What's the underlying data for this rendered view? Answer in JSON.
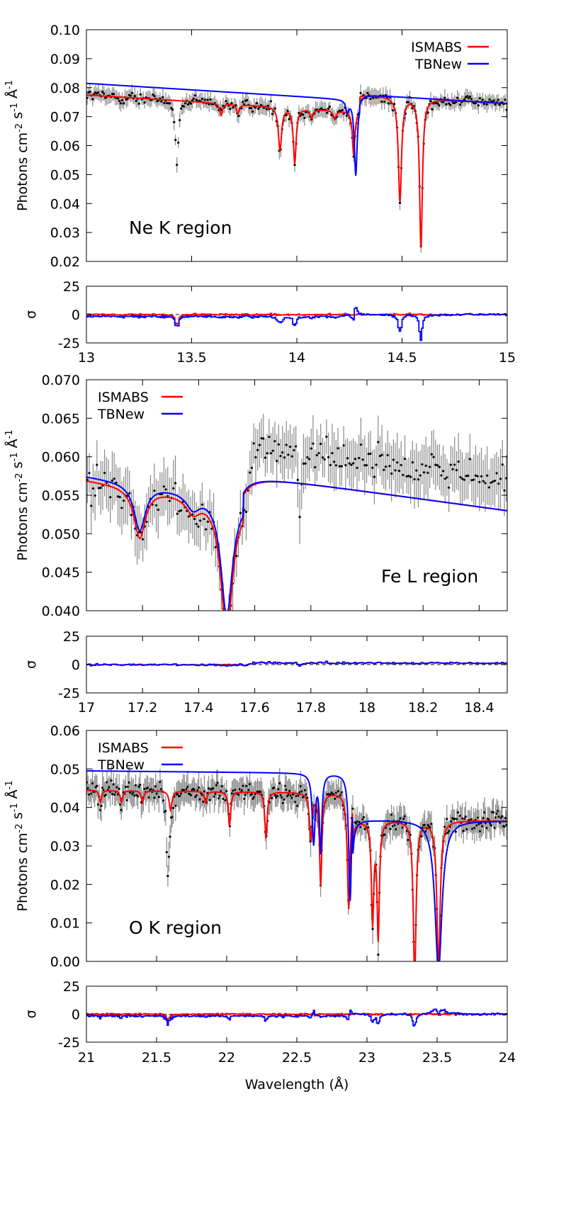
{
  "figure": {
    "ylabel_main": "Photons cm",
    "ylabel_sup1": "-2",
    "ylabel_mid": " s",
    "ylabel_sup2": "-1",
    "ylabel_unit": " Å",
    "ylabel_sup3": "-1",
    "resid_ylabel": "σ",
    "xlabel": "Wavelength (Å)"
  },
  "chart_data": [
    {
      "type": "line",
      "panel": "Ne K region",
      "annotation": "Ne K region",
      "xlim": [
        13,
        15
      ],
      "ylim": [
        0.02,
        0.1
      ],
      "xticks": [
        "13",
        "13.5",
        "14",
        "14.5",
        "15"
      ],
      "yticks": [
        "0.02",
        "0.03",
        "0.04",
        "0.05",
        "0.06",
        "0.07",
        "0.08",
        "0.09",
        "0.10"
      ],
      "legend_position": "top-right",
      "continuum": {
        "x": [
          13.0,
          15.0
        ],
        "y": [
          0.0835,
          0.0745
        ]
      },
      "data_scatter": 0.0022,
      "series": [
        {
          "name": "ISMABS",
          "color": "#ff0000",
          "lines": [
            {
              "x": 13.64,
              "d": 0.004,
              "w": 0.008
            },
            {
              "x": 13.72,
              "d": 0.003,
              "w": 0.008
            },
            {
              "x": 13.92,
              "d": 0.015,
              "w": 0.009
            },
            {
              "x": 13.99,
              "d": 0.019,
              "w": 0.008
            },
            {
              "x": 14.07,
              "d": 0.003,
              "w": 0.008
            },
            {
              "x": 14.18,
              "d": 0.003,
              "w": 0.008
            },
            {
              "x": 14.27,
              "d": 0.015,
              "w": 0.007
            },
            {
              "x": 14.49,
              "d": 0.036,
              "w": 0.009
            },
            {
              "x": 14.59,
              "d": 0.052,
              "w": 0.008
            }
          ],
          "edge": {
            "x": 14.3,
            "pre": 0.006
          }
        },
        {
          "name": "TBNew",
          "color": "#0000ff",
          "lines": [
            {
              "x": 14.28,
              "d": 0.026,
              "w": 0.008
            },
            {
              "x": 14.24,
              "d": 0.004,
              "w": 0.008
            }
          ],
          "edge": {
            "x": 14.3,
            "pre": 0.002
          }
        }
      ],
      "extra_data_dips": [
        {
          "x": 13.43,
          "d": 0.024,
          "w": 0.008
        }
      ],
      "residual": {
        "ylim": [
          -25,
          25
        ],
        "yticks": [
          "25",
          "0",
          "-25"
        ]
      }
    },
    {
      "type": "line",
      "panel": "Fe L region",
      "annotation": "Fe L region",
      "xlim": [
        17,
        18.5
      ],
      "ylim": [
        0.04,
        0.07
      ],
      "xticks": [
        "17",
        "17.2",
        "17.4",
        "17.6",
        "17.8",
        "18",
        "18.2",
        "18.4"
      ],
      "yticks": [
        "0.040",
        "0.045",
        "0.050",
        "0.055",
        "0.060",
        "0.065",
        "0.070"
      ],
      "legend_position": "top-left",
      "continuum": {
        "x": [
          17.0,
          18.5
        ],
        "y": [
          0.0605,
          0.053
        ]
      },
      "data_scatter": 0.0028,
      "series": [
        {
          "name": "ISMABS",
          "color": "#ff0000",
          "lines": [
            {
              "x": 17.19,
              "d": 0.0065,
              "w": 0.025
            },
            {
              "x": 17.5,
              "d": 0.0175,
              "w": 0.025
            },
            {
              "x": 17.38,
              "d": 0.002,
              "w": 0.03
            }
          ],
          "edge": {
            "x": 17.56,
            "pre": 0.0035
          }
        },
        {
          "name": "TBNew",
          "color": "#0000ff",
          "lines": [
            {
              "x": 17.19,
              "d": 0.006,
              "w": 0.025
            },
            {
              "x": 17.5,
              "d": 0.0155,
              "w": 0.025
            },
            {
              "x": 17.38,
              "d": 0.002,
              "w": 0.03
            }
          ],
          "edge": {
            "x": 17.56,
            "pre": 0.003
          }
        }
      ],
      "extra_data_dips": [
        {
          "x": 17.76,
          "d": 0.008,
          "w": 0.006
        }
      ],
      "data_bump": {
        "from": 17.58,
        "to": 18.5,
        "amount": 0.004
      },
      "residual": {
        "ylim": [
          -25,
          25
        ],
        "yticks": [
          "25",
          "0",
          "-25"
        ]
      }
    },
    {
      "type": "line",
      "panel": "O K region",
      "annotation": "O K region",
      "xlim": [
        21,
        24
      ],
      "ylim": [
        0.0,
        0.06
      ],
      "xticks": [
        "21",
        "21.5",
        "22",
        "22.5",
        "23",
        "23.5",
        "24"
      ],
      "yticks": [
        "0.00",
        "0.01",
        "0.02",
        "0.03",
        "0.04",
        "0.05",
        "0.06"
      ],
      "legend_position": "top-left",
      "continuum": {
        "x": [
          21.0,
          24.0
        ],
        "y": [
          0.0375,
          0.0365
        ]
      },
      "data_scatter": 0.003,
      "series": [
        {
          "name": "ISMABS",
          "color": "#ff0000",
          "lines": [
            {
              "x": 21.1,
              "d": 0.003,
              "w": 0.01
            },
            {
              "x": 21.25,
              "d": 0.003,
              "w": 0.01
            },
            {
              "x": 21.4,
              "d": 0.003,
              "w": 0.01
            },
            {
              "x": 21.6,
              "d": 0.005,
              "w": 0.012
            },
            {
              "x": 21.85,
              "d": 0.003,
              "w": 0.01
            },
            {
              "x": 22.02,
              "d": 0.009,
              "w": 0.01
            },
            {
              "x": 22.28,
              "d": 0.012,
              "w": 0.01
            },
            {
              "x": 22.6,
              "d": 0.012,
              "w": 0.012
            },
            {
              "x": 22.67,
              "d": 0.024,
              "w": 0.01
            },
            {
              "x": 22.87,
              "d": 0.03,
              "w": 0.012
            },
            {
              "x": 23.04,
              "d": 0.026,
              "w": 0.01
            },
            {
              "x": 23.08,
              "d": 0.03,
              "w": 0.01
            },
            {
              "x": 23.34,
              "d": 0.041,
              "w": 0.012
            },
            {
              "x": 23.51,
              "d": 0.038,
              "w": 0.014
            }
          ],
          "edge": {
            "x": 22.9,
            "pre": -0.007
          }
        },
        {
          "name": "TBNew",
          "color": "#0000ff",
          "lines": [
            {
              "x": 22.62,
              "d": 0.018,
              "w": 0.012
            },
            {
              "x": 22.67,
              "d": 0.02,
              "w": 0.01
            },
            {
              "x": 22.88,
              "d": 0.033,
              "w": 0.012
            },
            {
              "x": 23.51,
              "d": 0.039,
              "w": 0.03
            }
          ],
          "edge": {
            "x": 22.9,
            "pre": -0.012
          }
        }
      ],
      "extra_data_dips": [
        {
          "x": 21.58,
          "d": 0.022,
          "w": 0.01
        }
      ],
      "residual": {
        "ylim": [
          -25,
          25
        ],
        "yticks": [
          "25",
          "0",
          "-25"
        ]
      }
    }
  ]
}
